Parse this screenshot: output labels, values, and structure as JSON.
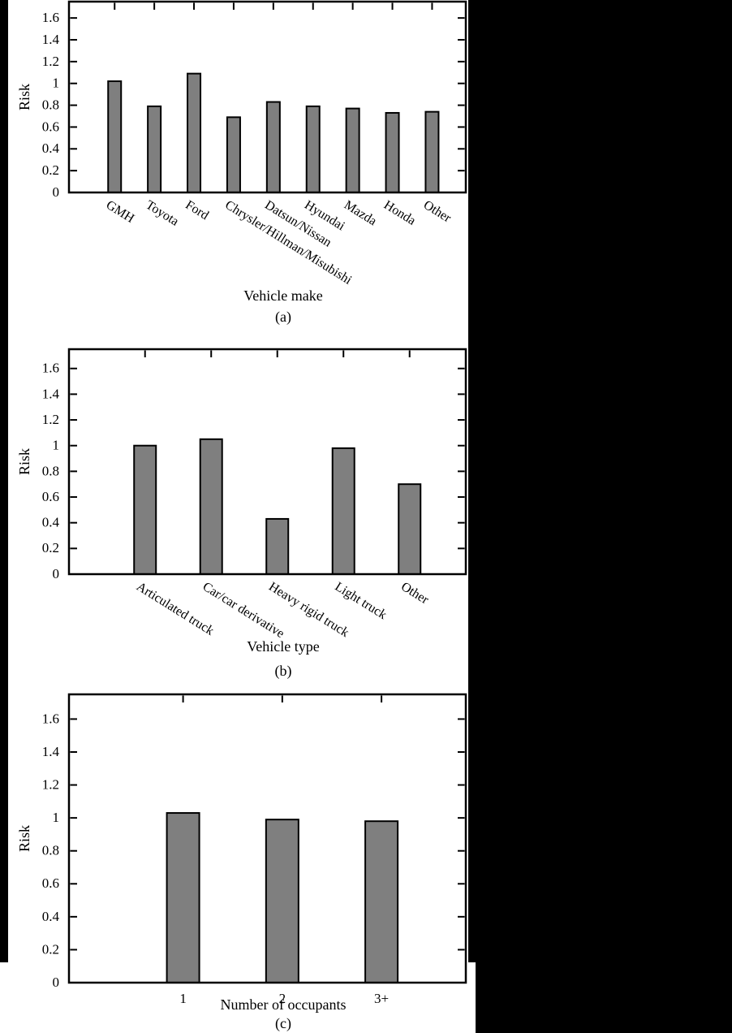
{
  "page": {
    "background_color": "#000000",
    "figure_background_color": "#ffffff",
    "text_color": "#000000"
  },
  "chart_data": [
    {
      "type": "bar",
      "panel": "a",
      "caption": "(a)",
      "xlabel": "Vehicle make",
      "ylabel": "Risk",
      "categories": [
        "GMH",
        "Toyota",
        "Ford",
        "Chrysler/Hillman/Misubishi",
        "Datsun/Nissan",
        "Hyundai",
        "Mazda",
        "Honda",
        "Other"
      ],
      "values": [
        1.02,
        0.79,
        1.09,
        0.69,
        0.83,
        0.79,
        0.77,
        0.73,
        0.74
      ],
      "ylim": [
        0,
        1.75
      ],
      "ytick_labels": [
        "0",
        "0.2",
        "0.4",
        "0.6",
        "0.8",
        "1",
        "1.2",
        "1.4",
        "1.6"
      ],
      "bar_color": "#7f7f7f",
      "grid": false,
      "legend": "none",
      "xtick_rotation": "diagonal"
    },
    {
      "type": "bar",
      "panel": "b",
      "caption": "(b)",
      "xlabel": "Vehicle type",
      "ylabel": "Risk",
      "categories": [
        "Articulated truck",
        "Car/car derivative",
        "Heavy rigid truck",
        "Light truck",
        "Other"
      ],
      "values": [
        1.0,
        1.05,
        0.43,
        0.98,
        0.7
      ],
      "ylim": [
        0,
        1.75
      ],
      "ytick_labels": [
        "0",
        "0.2",
        "0.4",
        "0.6",
        "0.8",
        "1",
        "1.2",
        "1.4",
        "1.6"
      ],
      "bar_color": "#7f7f7f",
      "grid": false,
      "legend": "none",
      "xtick_rotation": "diagonal"
    },
    {
      "type": "bar",
      "panel": "c",
      "caption": "(c)",
      "xlabel": "Number of occupants",
      "ylabel": "Risk",
      "categories": [
        "1",
        "2",
        "3+"
      ],
      "values": [
        1.03,
        0.99,
        0.98
      ],
      "ylim": [
        0,
        1.75
      ],
      "ytick_labels": [
        "0",
        "0.2",
        "0.4",
        "0.6",
        "0.8",
        "1",
        "1.2",
        "1.4",
        "1.6"
      ],
      "bar_color": "#7f7f7f",
      "grid": false,
      "legend": "none",
      "xtick_rotation": "horizontal"
    }
  ]
}
